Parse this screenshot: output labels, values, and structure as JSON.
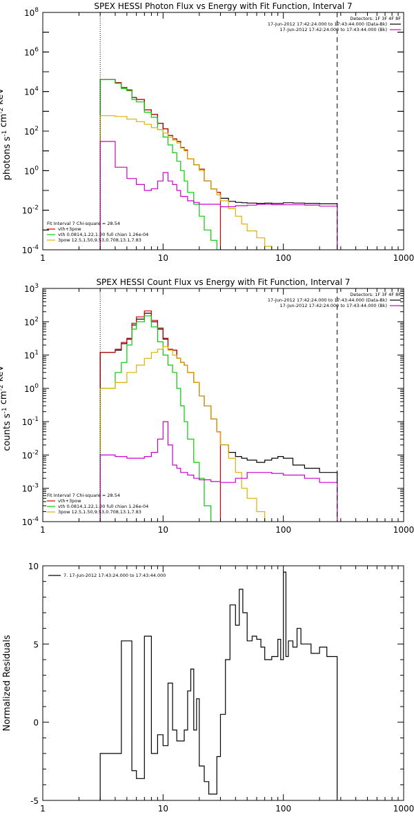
{
  "chart_data": [
    {
      "type": "line",
      "title": "SPEX HESSI Photon Flux vs Energy with Fit Function, Interval 7",
      "ylabel": "photons s^-1 cm^-2 keV^-1",
      "xlabel": "",
      "xscale": "log",
      "yscale": "log",
      "xlim": [
        1,
        1000
      ],
      "ylim": [
        0.0001,
        100000000
      ],
      "x_ticks": [
        "1",
        "10",
        "100",
        "1000"
      ],
      "y_ticks": [
        "10^-4",
        "10^-2",
        "10^0",
        "10^2",
        "10^4",
        "10^6",
        "10^8"
      ],
      "vlines": [
        {
          "x": 3,
          "style": "dotted"
        },
        {
          "x": 280,
          "style": "dashed"
        }
      ],
      "legend_top": {
        "placement": "top-right",
        "header": "Detectors: 1F 3F 4F 8F",
        "entries": [
          {
            "text": "17-Jun-2012 17:42:24.000 to 17:43:44.000 (Data-Bk)",
            "color": "#000000"
          },
          {
            "text": "17-Jun-2012 17:42:24.000 to 17:43:44.000 (Bk)",
            "color": "#cc00cc"
          }
        ]
      },
      "legend_fit": {
        "placement": "bottom-left",
        "header": "Fit Interval 7   Chi-square = 28.54",
        "entries": [
          {
            "text": "vth+3pow",
            "color": "#cc0000"
          },
          {
            "text": "vth 0.0814,1.22,1.00  full chian 1.26e-04",
            "color": "#00cc00"
          },
          {
            "text": "3pow 12.5,1.50,9.53,0.708,13.1,7.83",
            "color": "#ddb000"
          }
        ]
      },
      "series": [
        {
          "key": "data",
          "color": "#000000",
          "x": [
            3,
            3.5,
            4,
            4.5,
            5,
            5.5,
            6,
            7,
            8,
            9,
            10,
            11,
            12,
            13,
            14,
            15,
            16,
            18,
            20,
            22,
            25,
            28,
            30,
            35,
            40,
            45,
            50,
            60,
            70,
            80,
            100,
            120,
            150,
            200,
            280
          ],
          "y": [
            40000,
            40000,
            28000,
            16000,
            12000,
            5000,
            4000,
            1200,
            700,
            250,
            130,
            60,
            40,
            30,
            15,
            11,
            4,
            2,
            1.2,
            0.3,
            0.12,
            0.08,
            0.04,
            0.028,
            0.025,
            0.024,
            0.023,
            0.022,
            0.023,
            0.022,
            0.024,
            0.023,
            0.022,
            0.021,
            0.019
          ]
        },
        {
          "key": "fit",
          "color": "#cc0000",
          "x": [
            3,
            3.5,
            4,
            4.5,
            5,
            5.5,
            6,
            7,
            8,
            9,
            10,
            11,
            12,
            13,
            14,
            15,
            16,
            18,
            20,
            22,
            25,
            28,
            30
          ],
          "y": [
            40000,
            40000,
            28000,
            16000,
            12000,
            5000,
            4000,
            1200,
            700,
            250,
            130,
            60,
            40,
            30,
            15,
            11,
            4,
            2,
            1.2,
            0.3,
            0.12,
            0.08,
            0.04
          ]
        },
        {
          "key": "vth",
          "color": "#00cc00",
          "x": [
            3,
            3.5,
            4,
            4.5,
            5,
            5.5,
            6,
            7,
            8,
            9,
            10,
            11,
            12,
            13,
            14,
            15,
            16,
            18,
            20,
            22,
            25,
            28,
            30
          ],
          "y": [
            40000,
            40000,
            26000,
            14000,
            11000,
            4000,
            3000,
            900,
            500,
            120,
            50,
            20,
            8,
            3,
            1,
            0.3,
            0.08,
            0.02,
            0.005,
            0.001,
            0.0003,
            0.0001,
            0.0001
          ]
        },
        {
          "key": "pow",
          "color": "#ddb000",
          "x": [
            3,
            4,
            5,
            6,
            7,
            8,
            9,
            10,
            11,
            12,
            13,
            14,
            15,
            16,
            18,
            20,
            22,
            25,
            28,
            30,
            35,
            40,
            45,
            50,
            60,
            70,
            80
          ],
          "y": [
            600,
            550,
            400,
            300,
            220,
            150,
            120,
            80,
            50,
            35,
            25,
            14,
            10,
            4,
            2,
            1,
            0.3,
            0.12,
            0.06,
            0.03,
            0.012,
            0.005,
            0.002,
            0.0009,
            0.0004,
            0.00015,
            0.0001
          ]
        },
        {
          "key": "bk",
          "color": "#cc00cc",
          "x": [
            3,
            4,
            5,
            6,
            7,
            8,
            9,
            10,
            11,
            12,
            13,
            14,
            16,
            18,
            20,
            25,
            30,
            40,
            50,
            60,
            80,
            100,
            150,
            200,
            280
          ],
          "y": [
            30,
            1.5,
            0.4,
            0.2,
            0.1,
            0.12,
            0.3,
            0.8,
            0.3,
            0.2,
            0.1,
            0.05,
            0.03,
            0.025,
            0.02,
            0.02,
            0.015,
            0.017,
            0.018,
            0.02,
            0.019,
            0.019,
            0.018,
            0.016,
            0.014
          ]
        }
      ]
    },
    {
      "type": "line",
      "title": "SPEX HESSI Count Flux vs Energy with Fit Function, Interval 7",
      "ylabel": "counts s^-1 cm^-2 keV^-1",
      "xlabel": "",
      "xscale": "log",
      "yscale": "log",
      "xlim": [
        1,
        1000
      ],
      "ylim": [
        0.0001,
        1000
      ],
      "x_ticks": [
        "1",
        "10",
        "100",
        "1000"
      ],
      "y_ticks": [
        "10^-4",
        "10^-3",
        "10^-2",
        "10^-1",
        "10^0",
        "10^1",
        "10^2",
        "10^3"
      ],
      "vlines": [
        {
          "x": 3,
          "style": "dotted"
        },
        {
          "x": 280,
          "style": "dashed"
        }
      ],
      "legend_top": {
        "placement": "top-right",
        "header": "Detectors: 1F 3F 4F 8F",
        "entries": [
          {
            "text": "17-Jun-2012 17:42:24.000 to 17:43:44.000 (Data-Bk)",
            "color": "#000000"
          },
          {
            "text": "17-Jun-2012 17:42:24.000 to 17:43:44.000 (Bk)",
            "color": "#cc00cc"
          }
        ]
      },
      "legend_fit": {
        "placement": "bottom-left",
        "header": "Fit Interval 7   Chi-square = 28.54",
        "entries": [
          {
            "text": "vth+3pow",
            "color": "#cc0000"
          },
          {
            "text": "vth 0.0814,1.22,1.00  full chian 1.26e-04",
            "color": "#00cc00"
          },
          {
            "text": "3pow 12.5,1.50,9.53,0.708,13.1,7.83",
            "color": "#ddb000"
          }
        ]
      },
      "series": [
        {
          "key": "data",
          "color": "#000000",
          "x": [
            3,
            3.5,
            4,
            4.5,
            5,
            5.5,
            6,
            7,
            8,
            9,
            10,
            11,
            12,
            13,
            14,
            15,
            16,
            18,
            20,
            22,
            25,
            28,
            30,
            35,
            40,
            45,
            50,
            60,
            70,
            80,
            90,
            100,
            120,
            150,
            200,
            280
          ],
          "y": [
            12,
            12,
            14,
            22,
            30,
            80,
            120,
            180,
            100,
            60,
            30,
            15,
            14,
            8,
            6,
            5,
            3,
            1.5,
            0.6,
            0.3,
            0.12,
            0.05,
            0.02,
            0.012,
            0.009,
            0.008,
            0.007,
            0.006,
            0.007,
            0.008,
            0.009,
            0.008,
            0.005,
            0.004,
            0.003,
            0.002
          ]
        },
        {
          "key": "fit",
          "color": "#cc0000",
          "x": [
            3,
            3.5,
            4,
            4.5,
            5,
            5.5,
            6,
            7,
            8,
            9,
            10,
            11,
            12,
            13,
            14,
            15,
            16,
            18,
            20,
            22,
            25,
            28,
            30
          ],
          "y": [
            12,
            12,
            15,
            24,
            32,
            90,
            140,
            210,
            110,
            65,
            32,
            15,
            14,
            8,
            6,
            5,
            3,
            1.5,
            0.6,
            0.3,
            0.12,
            0.05,
            0.02
          ]
        },
        {
          "key": "vth",
          "color": "#00cc00",
          "x": [
            3,
            3.5,
            4,
            4.5,
            5,
            5.5,
            6,
            7,
            8,
            9,
            10,
            11,
            12,
            13,
            14,
            15,
            16,
            18,
            20,
            22,
            25
          ],
          "y": [
            1,
            1,
            3,
            6,
            20,
            60,
            100,
            150,
            70,
            25,
            10,
            5,
            3,
            1,
            0.3,
            0.1,
            0.03,
            0.006,
            0.002,
            0.0003,
            0.0001
          ]
        },
        {
          "key": "pow",
          "color": "#ddb000",
          "x": [
            3,
            4,
            5,
            6,
            7,
            8,
            9,
            10,
            11,
            12,
            13,
            14,
            15,
            16,
            18,
            20,
            22,
            25,
            28,
            30,
            35,
            40,
            45,
            50,
            60,
            70
          ],
          "y": [
            1,
            1.5,
            3,
            5,
            8,
            12,
            15,
            18,
            14,
            10,
            8,
            6,
            5,
            3,
            1.5,
            0.6,
            0.3,
            0.12,
            0.05,
            0.02,
            0.008,
            0.003,
            0.001,
            0.0005,
            0.0002,
            0.0001
          ]
        },
        {
          "key": "bk",
          "color": "#cc00cc",
          "x": [
            3,
            4,
            5,
            6,
            7,
            8,
            9,
            10,
            11,
            12,
            13,
            14,
            16,
            18,
            20,
            25,
            30,
            40,
            50,
            60,
            80,
            100,
            150,
            200,
            280
          ],
          "y": [
            0.01,
            0.009,
            0.008,
            0.008,
            0.009,
            0.012,
            0.03,
            0.1,
            0.02,
            0.005,
            0.004,
            0.003,
            0.0025,
            0.002,
            0.0018,
            0.0016,
            0.0015,
            0.002,
            0.003,
            0.003,
            0.0028,
            0.0025,
            0.002,
            0.0015,
            0.001
          ]
        }
      ]
    },
    {
      "type": "line",
      "title": "",
      "ylabel": "Normalized Residuals",
      "xlabel": "",
      "xscale": "log",
      "yscale": "linear",
      "xlim": [
        1,
        1000
      ],
      "ylim": [
        -5,
        10
      ],
      "x_ticks": [
        "1",
        "10",
        "100",
        "1000"
      ],
      "y_ticks": [
        "-5",
        "0",
        "5",
        "10"
      ],
      "legend_top": {
        "placement": "top-left",
        "header": "",
        "entries": [
          {
            "text": "7. 17-Jun-2012 17:43:24.000 to 17:43:44.000",
            "color": "#000000"
          }
        ]
      },
      "series": [
        {
          "key": "residuals",
          "color": "#000000",
          "x": [
            3,
            4,
            4.5,
            5,
            5.5,
            6,
            6.5,
            7,
            7.5,
            8,
            9,
            10,
            11,
            12,
            13,
            14,
            15,
            16,
            17,
            18,
            19,
            20,
            22,
            24,
            26,
            28,
            30,
            33,
            36,
            40,
            43,
            46,
            50,
            55,
            60,
            65,
            70,
            75,
            80,
            90,
            95,
            100,
            105,
            110,
            120,
            130,
            140,
            150,
            170,
            200,
            230,
            280
          ],
          "y": [
            -2,
            -2,
            5.2,
            5.2,
            -3.1,
            -3.6,
            -3.6,
            5.5,
            5.5,
            -2,
            -0.8,
            -1.5,
            2.5,
            -0.5,
            -1.2,
            -1.2,
            -0.5,
            2,
            3.4,
            -0.5,
            1.5,
            -2.8,
            -3.8,
            -4.6,
            -4.6,
            -2.2,
            0.5,
            4,
            7.5,
            6.2,
            8.5,
            7,
            5.2,
            5.5,
            5.3,
            4.8,
            4,
            4,
            4.2,
            5.3,
            4,
            9.6,
            4.2,
            5.2,
            4.8,
            6,
            5,
            5,
            4.4,
            4.8,
            4.2,
            4.2
          ]
        }
      ]
    }
  ]
}
